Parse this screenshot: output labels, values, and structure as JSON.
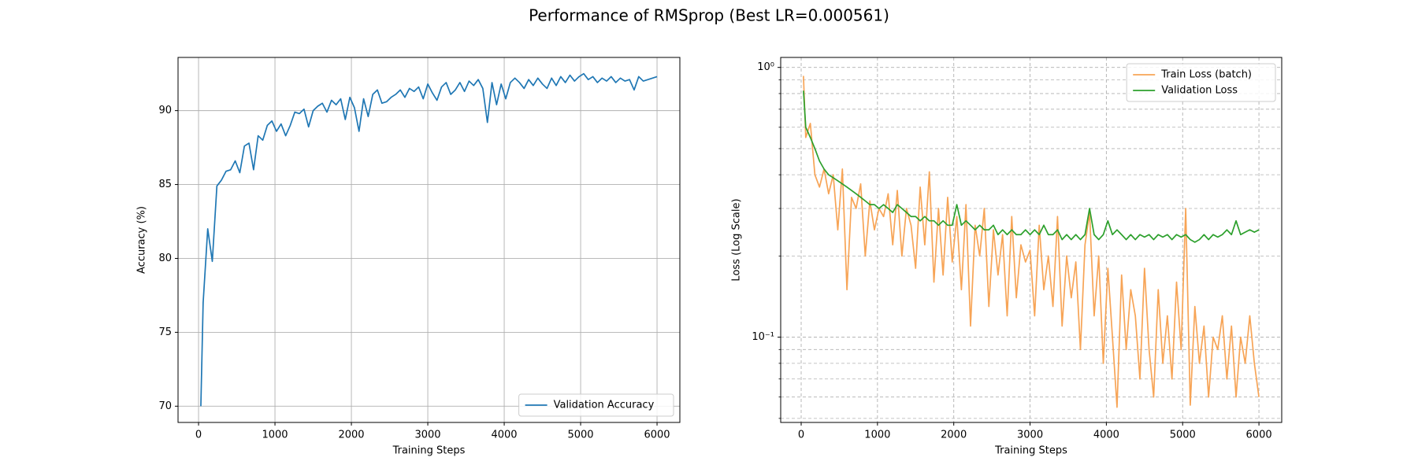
{
  "title": "Performance of RMSprop (Best LR=0.000561)",
  "chart_data": [
    {
      "type": "line",
      "xlabel": "Training Steps",
      "ylabel": "Accuracy (%)",
      "xlim": [
        -268.5,
        6298.5
      ],
      "xticks": [
        0,
        1000,
        2000,
        3000,
        4000,
        5000,
        6000
      ],
      "ylim": [
        68.9,
        93.6
      ],
      "yticks": [
        70,
        75,
        80,
        85,
        90
      ],
      "grid": true,
      "grid_style": "solid",
      "legend": "lower right",
      "x": [
        30,
        60,
        120,
        180,
        240,
        300,
        360,
        420,
        480,
        540,
        600,
        660,
        720,
        780,
        840,
        900,
        960,
        1020,
        1080,
        1140,
        1200,
        1260,
        1320,
        1380,
        1440,
        1500,
        1560,
        1620,
        1680,
        1740,
        1800,
        1860,
        1920,
        1980,
        2040,
        2100,
        2160,
        2220,
        2280,
        2340,
        2400,
        2460,
        2520,
        2580,
        2640,
        2700,
        2760,
        2820,
        2880,
        2940,
        3000,
        3060,
        3120,
        3180,
        3240,
        3300,
        3360,
        3420,
        3480,
        3540,
        3600,
        3660,
        3720,
        3780,
        3840,
        3900,
        3960,
        4020,
        4080,
        4140,
        4200,
        4260,
        4320,
        4380,
        4440,
        4500,
        4560,
        4620,
        4680,
        4740,
        4800,
        4860,
        4920,
        4980,
        5040,
        5100,
        5160,
        5220,
        5280,
        5340,
        5400,
        5460,
        5520,
        5580,
        5640,
        5700,
        5760,
        5820,
        5880,
        5940,
        6000
      ],
      "series": [
        {
          "name": "Validation Accuracy",
          "color": "#1f77b4",
          "values": [
            70.0,
            77.0,
            82.0,
            79.8,
            84.9,
            85.3,
            85.9,
            86.0,
            86.6,
            85.8,
            87.6,
            87.8,
            86.0,
            88.3,
            88.0,
            89.0,
            89.3,
            88.6,
            89.1,
            88.3,
            89.0,
            89.9,
            89.8,
            90.1,
            88.9,
            90.0,
            90.3,
            90.5,
            89.9,
            90.7,
            90.4,
            90.8,
            89.4,
            90.9,
            90.2,
            88.6,
            90.8,
            89.6,
            91.1,
            91.4,
            90.5,
            90.6,
            90.9,
            91.1,
            91.4,
            90.9,
            91.5,
            91.3,
            91.6,
            90.8,
            91.8,
            91.2,
            90.7,
            91.6,
            91.9,
            91.1,
            91.4,
            91.9,
            91.3,
            92.0,
            91.7,
            92.1,
            91.5,
            89.2,
            91.9,
            90.4,
            91.8,
            90.8,
            91.9,
            92.2,
            91.9,
            91.5,
            92.1,
            91.7,
            92.2,
            91.8,
            91.5,
            92.2,
            91.7,
            92.3,
            91.9,
            92.4,
            92.0,
            92.3,
            92.5,
            92.1,
            92.3,
            91.9,
            92.2,
            92.0,
            92.3,
            91.9,
            92.2,
            92.0,
            92.1,
            91.4,
            92.3,
            92.0,
            92.1,
            92.2,
            92.3
          ]
        }
      ]
    },
    {
      "type": "line",
      "xlabel": "Training Steps",
      "ylabel": "Loss (Log Scale)",
      "log_y": true,
      "xlim": [
        -268.5,
        6298.5
      ],
      "xticks": [
        0,
        1000,
        2000,
        3000,
        4000,
        5000,
        6000
      ],
      "ylim": [
        0.0483,
        1.089
      ],
      "yticks": [
        {
          "value": 0.1,
          "label": "10⁻¹"
        },
        {
          "value": 1,
          "label": "10⁰"
        }
      ],
      "yminor": [
        0.05,
        0.06,
        0.07,
        0.08,
        0.09,
        0.2,
        0.3,
        0.4,
        0.5,
        0.6,
        0.7,
        0.8,
        0.9
      ],
      "grid": true,
      "grid_style": "dashed",
      "legend": "upper right",
      "x": [
        30,
        60,
        120,
        180,
        240,
        300,
        360,
        420,
        480,
        540,
        600,
        660,
        720,
        780,
        840,
        900,
        960,
        1020,
        1080,
        1140,
        1200,
        1260,
        1320,
        1380,
        1440,
        1500,
        1560,
        1620,
        1680,
        1740,
        1800,
        1860,
        1920,
        1980,
        2040,
        2100,
        2160,
        2220,
        2280,
        2340,
        2400,
        2460,
        2520,
        2580,
        2640,
        2700,
        2760,
        2820,
        2880,
        2940,
        3000,
        3060,
        3120,
        3180,
        3240,
        3300,
        3360,
        3420,
        3480,
        3540,
        3600,
        3660,
        3720,
        3780,
        3840,
        3900,
        3960,
        4020,
        4080,
        4140,
        4200,
        4260,
        4320,
        4380,
        4440,
        4500,
        4560,
        4620,
        4680,
        4740,
        4800,
        4860,
        4920,
        4980,
        5040,
        5100,
        5160,
        5220,
        5280,
        5340,
        5400,
        5460,
        5520,
        5580,
        5640,
        5700,
        5760,
        5820,
        5880,
        5940,
        6000
      ],
      "series": [
        {
          "name": "Train Loss (batch)",
          "color": "#f7a456",
          "values": [
            0.93,
            0.55,
            0.62,
            0.4,
            0.36,
            0.42,
            0.34,
            0.4,
            0.25,
            0.42,
            0.15,
            0.33,
            0.3,
            0.37,
            0.2,
            0.32,
            0.25,
            0.3,
            0.28,
            0.34,
            0.22,
            0.35,
            0.2,
            0.3,
            0.26,
            0.18,
            0.36,
            0.22,
            0.41,
            0.16,
            0.3,
            0.17,
            0.33,
            0.19,
            0.28,
            0.15,
            0.31,
            0.11,
            0.26,
            0.2,
            0.3,
            0.13,
            0.25,
            0.17,
            0.24,
            0.12,
            0.28,
            0.14,
            0.22,
            0.19,
            0.21,
            0.12,
            0.26,
            0.15,
            0.2,
            0.13,
            0.28,
            0.11,
            0.2,
            0.14,
            0.19,
            0.09,
            0.22,
            0.29,
            0.12,
            0.2,
            0.08,
            0.18,
            0.1,
            0.055,
            0.17,
            0.09,
            0.15,
            0.12,
            0.07,
            0.18,
            0.09,
            0.06,
            0.15,
            0.08,
            0.12,
            0.07,
            0.16,
            0.09,
            0.3,
            0.056,
            0.13,
            0.08,
            0.11,
            0.06,
            0.1,
            0.09,
            0.12,
            0.07,
            0.11,
            0.06,
            0.1,
            0.08,
            0.12,
            0.08,
            0.06
          ]
        },
        {
          "name": "Validation Loss",
          "color": "#2ca02c",
          "values": [
            0.82,
            0.6,
            0.55,
            0.5,
            0.45,
            0.42,
            0.4,
            0.39,
            0.38,
            0.37,
            0.36,
            0.35,
            0.34,
            0.33,
            0.32,
            0.31,
            0.31,
            0.3,
            0.31,
            0.3,
            0.29,
            0.31,
            0.3,
            0.29,
            0.28,
            0.28,
            0.27,
            0.28,
            0.27,
            0.27,
            0.26,
            0.27,
            0.26,
            0.26,
            0.31,
            0.26,
            0.27,
            0.26,
            0.25,
            0.26,
            0.25,
            0.25,
            0.26,
            0.24,
            0.25,
            0.24,
            0.25,
            0.24,
            0.24,
            0.25,
            0.24,
            0.25,
            0.24,
            0.26,
            0.24,
            0.24,
            0.25,
            0.23,
            0.24,
            0.23,
            0.24,
            0.23,
            0.24,
            0.3,
            0.24,
            0.23,
            0.24,
            0.27,
            0.24,
            0.25,
            0.24,
            0.23,
            0.24,
            0.23,
            0.24,
            0.235,
            0.24,
            0.23,
            0.24,
            0.235,
            0.24,
            0.23,
            0.24,
            0.235,
            0.24,
            0.23,
            0.225,
            0.23,
            0.24,
            0.23,
            0.24,
            0.235,
            0.24,
            0.25,
            0.24,
            0.27,
            0.24,
            0.245,
            0.25,
            0.245,
            0.25
          ]
        }
      ]
    }
  ]
}
